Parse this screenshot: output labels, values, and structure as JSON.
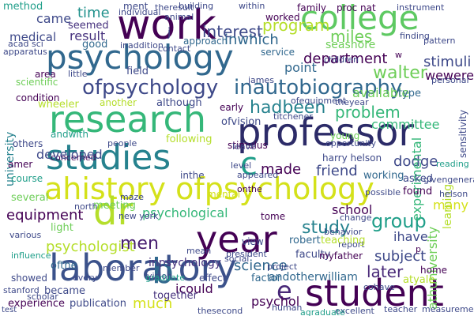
{
  "words": [
    {
      "text": "college",
      "color": "#5ec962"
    },
    {
      "text": "work",
      "color": "#440154"
    },
    {
      "text": "psychology",
      "color": "#31688e"
    },
    {
      "text": "research",
      "color": "#35b779"
    },
    {
      "text": "professor",
      "color": "#2c2b68"
    },
    {
      "text": "studies",
      "color": "#26828e"
    },
    {
      "text": "ahistory ofpsychology",
      "color": "#d4e11a"
    },
    {
      "text": "year",
      "color": "#440154"
    },
    {
      "text": "laboratory",
      "color": "#3b528b"
    },
    {
      "text": "student",
      "color": "#440154"
    },
    {
      "text": "dr",
      "color": "#b5de2b"
    },
    {
      "text": "b",
      "color": "#31688e"
    },
    {
      "text": "c",
      "color": "#1f9e89"
    },
    {
      "text": "e",
      "color": "#482878"
    },
    {
      "text": "ofpsychology",
      "color": "#3e4989"
    },
    {
      "text": "inautobiography",
      "color": "#31688e"
    },
    {
      "text": "program",
      "color": "#b5de2b"
    },
    {
      "text": "miles",
      "color": "#6ece58"
    },
    {
      "text": "department",
      "color": "#440154"
    },
    {
      "text": "walter",
      "color": "#6ece58"
    },
    {
      "text": "stimuli",
      "color": "#3e4989"
    },
    {
      "text": "problem",
      "color": "#35b779"
    },
    {
      "text": "hadbeen",
      "color": "#26828e"
    },
    {
      "text": "interest",
      "color": "#3e4989"
    },
    {
      "text": "inwhich",
      "color": "#31688e"
    },
    {
      "text": "time",
      "color": "#21918c"
    },
    {
      "text": "came",
      "color": "#3e4989"
    },
    {
      "text": "result",
      "color": "#46327e"
    },
    {
      "text": "group",
      "color": "#1f9e89"
    },
    {
      "text": "study",
      "color": "#26828e"
    },
    {
      "text": "subject",
      "color": "#3e4989"
    },
    {
      "text": "later",
      "color": "#482878"
    },
    {
      "text": "science",
      "color": "#31688e"
    },
    {
      "text": "psychologist",
      "color": "#b5de2b"
    },
    {
      "text": "psychological",
      "color": "#35b779"
    },
    {
      "text": "equipment",
      "color": "#440154"
    },
    {
      "text": "men",
      "color": "#481f70"
    },
    {
      "text": "much",
      "color": "#d4e11a"
    },
    {
      "text": "made",
      "color": "#440154"
    },
    {
      "text": "friend",
      "color": "#3e4989"
    },
    {
      "text": "school",
      "color": "#440154"
    },
    {
      "text": "committee",
      "color": "#35b779"
    },
    {
      "text": "point",
      "color": "#31688e"
    },
    {
      "text": "available",
      "color": "#6ece58"
    },
    {
      "text": "wewere",
      "color": "#440154"
    },
    {
      "text": "seashore",
      "color": "#6ece58"
    },
    {
      "text": "dodge",
      "color": "#3e4989"
    },
    {
      "text": "psychol",
      "color": "#440154"
    },
    {
      "text": "icould",
      "color": "#440154"
    },
    {
      "text": "inpsychology",
      "color": "#46327e"
    },
    {
      "text": "andotherwilliam",
      "color": "#31688e"
    },
    {
      "text": "ihave",
      "color": "#3e4989"
    },
    {
      "text": "many",
      "color": "#d4e11a"
    },
    {
      "text": "university",
      "color": "#26828e"
    },
    {
      "text": "athuniversity",
      "color": "#6ece58"
    },
    {
      "text": "experimental",
      "color": "#35b779"
    },
    {
      "text": "learning",
      "color": "#b5de2b"
    },
    {
      "text": "sensitivity",
      "color": "#3e4989"
    },
    {
      "text": "seemed",
      "color": "#46327e"
    },
    {
      "text": "method",
      "color": "#1f9e89"
    },
    {
      "text": "good",
      "color": "#31688e"
    },
    {
      "text": "course",
      "color": "#1f9e89"
    },
    {
      "text": "several",
      "color": "#6ece58"
    },
    {
      "text": "others",
      "color": "#3e4989"
    },
    {
      "text": "amer",
      "color": "#440154"
    },
    {
      "text": "light",
      "color": "#6ece58"
    },
    {
      "text": "meeting",
      "color": "#6ece58"
    },
    {
      "text": "experience",
      "color": "#440154"
    },
    {
      "text": "publication",
      "color": "#3e4989"
    },
    {
      "text": "together",
      "color": "#46327e"
    },
    {
      "text": "became",
      "color": "#3e4989"
    },
    {
      "text": "ofthe",
      "color": "#31688e"
    },
    {
      "text": "factor",
      "color": "#31688e"
    },
    {
      "text": "robert",
      "color": "#31688e"
    },
    {
      "text": "faculty",
      "color": "#3e4989"
    },
    {
      "text": "working",
      "color": "#31688e"
    },
    {
      "text": "asked",
      "color": "#3e4989"
    },
    {
      "text": "found",
      "color": "#440154"
    },
    {
      "text": "tome",
      "color": "#440154"
    },
    {
      "text": "stimulus",
      "color": "#440154"
    },
    {
      "text": "scientific",
      "color": "#6ece58"
    },
    {
      "text": "condition",
      "color": "#440154"
    },
    {
      "text": "wheeler",
      "color": "#b5de2b"
    },
    {
      "text": "another",
      "color": "#b5de2b"
    },
    {
      "text": "although",
      "color": "#3e4989"
    },
    {
      "text": "field",
      "color": "#3e4989"
    },
    {
      "text": "area",
      "color": "#440154"
    },
    {
      "text": "approach",
      "color": "#31688e"
    },
    {
      "text": "service",
      "color": "#31688e"
    },
    {
      "text": "worked",
      "color": "#440154"
    },
    {
      "text": "individual",
      "color": "#3e4989"
    },
    {
      "text": "family",
      "color": "#440154"
    },
    {
      "text": "proc nat",
      "color": "#440154"
    },
    {
      "text": "instrument",
      "color": "#3e4989"
    },
    {
      "text": "apparatus",
      "color": "#3e4989"
    },
    {
      "text": "acad sci",
      "color": "#3e4989"
    },
    {
      "text": "contact",
      "color": "#3e4989"
    },
    {
      "text": "ment",
      "color": "#3e4989"
    },
    {
      "text": "type",
      "color": "#31688e"
    },
    {
      "text": "young",
      "color": "#6ece58"
    },
    {
      "text": "harry helson",
      "color": "#3e4989"
    },
    {
      "text": "early",
      "color": "#440154"
    },
    {
      "text": "inthe",
      "color": "#3e4989"
    },
    {
      "text": "mental",
      "color": "#d4e11a"
    },
    {
      "text": "stanford",
      "color": "#3e4989"
    },
    {
      "text": "showed",
      "color": "#3e4989"
    },
    {
      "text": "scholar",
      "color": "#3e4989"
    },
    {
      "text": "every",
      "color": "#3e4989"
    },
    {
      "text": "member",
      "color": "#3e4989"
    },
    {
      "text": "vision",
      "color": "#3e4989"
    },
    {
      "text": "effect",
      "color": "#3e4989"
    },
    {
      "text": "view",
      "color": "#3e4989"
    },
    {
      "text": "leave",
      "color": "#3e4989"
    },
    {
      "text": "following",
      "color": "#b5de2b"
    },
    {
      "text": "andwith",
      "color": "#1f9e89"
    },
    {
      "text": "influence",
      "color": "#1f9e89"
    },
    {
      "text": "various",
      "color": "#3e4989"
    },
    {
      "text": "concerned",
      "color": "#440154"
    },
    {
      "text": "people",
      "color": "#3e4989"
    },
    {
      "text": "home",
      "color": "#440154"
    },
    {
      "text": "atyale",
      "color": "#b5de2b"
    },
    {
      "text": "teacher",
      "color": "#3e4989"
    },
    {
      "text": "measurement",
      "color": "#3e4989"
    },
    {
      "text": "cohave",
      "color": "#3e4989"
    },
    {
      "text": "change",
      "color": "#3e4989"
    },
    {
      "text": "behavior",
      "color": "#3e4989"
    },
    {
      "text": "report",
      "color": "#3e4989"
    },
    {
      "text": "president",
      "color": "#3e4989"
    },
    {
      "text": "myfather",
      "color": "#440154"
    },
    {
      "text": "teaching",
      "color": "#b5de2b"
    },
    {
      "text": "helson",
      "color": "#3e4989"
    },
    {
      "text": "maze",
      "color": "#3e4989"
    },
    {
      "text": "new york",
      "color": "#3e4989"
    },
    {
      "text": "opportunity",
      "color": "#3e4989"
    },
    {
      "text": "theyear",
      "color": "#3e4989"
    },
    {
      "text": "personal",
      "color": "#3e4989"
    },
    {
      "text": "building",
      "color": "#3e4989"
    },
    {
      "text": "james",
      "color": "#3e4989"
    },
    {
      "text": "children",
      "color": "#3e4989"
    },
    {
      "text": "pattern",
      "color": "#3e4989"
    },
    {
      "text": "finding",
      "color": "#3e4989"
    },
    {
      "text": "titchener",
      "color": "#3e4989"
    },
    {
      "text": "reading",
      "color": "#1f9e89"
    },
    {
      "text": "ofequipment",
      "color": "#3e4989"
    },
    {
      "text": "appeared",
      "color": "#3e4989"
    },
    {
      "text": "level",
      "color": "#3e4989"
    },
    {
      "text": "social",
      "color": "#3e4989"
    },
    {
      "text": "project",
      "color": "#3e4989"
    },
    {
      "text": "human",
      "color": "#3e4989"
    },
    {
      "text": "thesecond",
      "color": "#3e4989"
    },
    {
      "text": "excellent",
      "color": "#3e4989"
    },
    {
      "text": "north",
      "color": "#3e4989"
    },
    {
      "text": "theresult",
      "color": "#3e4989"
    },
    {
      "text": "animal",
      "color": "#3e4989"
    },
    {
      "text": "within",
      "color": "#3e4989"
    },
    {
      "text": "agraduate",
      "color": "#1f9e89"
    },
    {
      "text": "graduate",
      "color": "#1f9e89"
    },
    {
      "text": "mean",
      "color": "#3e4989"
    },
    {
      "text": "ofvision",
      "color": "#3e4989"
    },
    {
      "text": "possible",
      "color": "#3e4989"
    },
    {
      "text": "onthe",
      "color": "#440154"
    },
    {
      "text": "givengeneral",
      "color": "#3e4989"
    },
    {
      "text": "inaddition",
      "color": "#3e4989"
    },
    {
      "text": "little",
      "color": "#3e4989"
    },
    {
      "text": "developed",
      "color": "#3e4989"
    },
    {
      "text": "medical",
      "color": "#3e4989"
    },
    {
      "text": "j",
      "color": "#3e4989"
    },
    {
      "text": "w",
      "color": "#440154"
    },
    {
      "text": "p",
      "color": "#440154"
    },
    {
      "text": "test",
      "color": "#3e4989"
    },
    {
      "text": "one",
      "color": "#3e4989"
    },
    {
      "text": "nat acad",
      "color": "#3e4989"
    }
  ]
}
